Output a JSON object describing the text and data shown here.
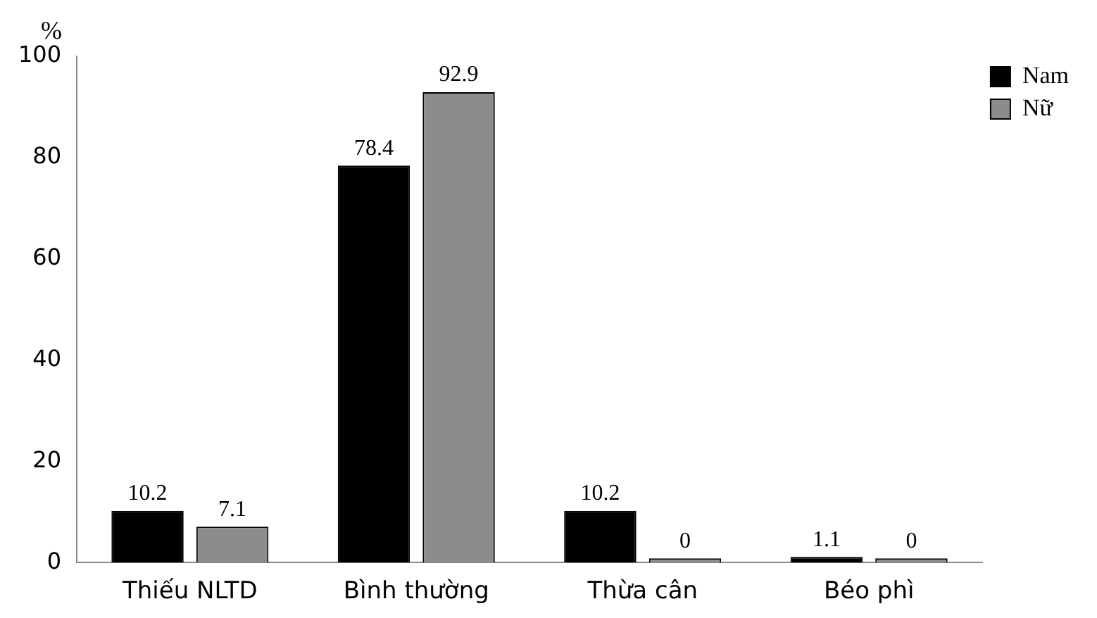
{
  "chart_data": {
    "type": "bar",
    "ylabel": "%",
    "categories": [
      "Thiếu NLTD",
      "Bình thường",
      "Thừa cân",
      "Béo phì"
    ],
    "series": [
      {
        "name": "Nam",
        "color": "#000000",
        "values": [
          10.2,
          78.4,
          10.2,
          1.1
        ]
      },
      {
        "name": "Nữ",
        "color": "#8c8c8c",
        "values": [
          7.1,
          92.9,
          0,
          0
        ]
      }
    ],
    "ylim": [
      0,
      100
    ],
    "yticks": [
      0,
      20,
      40,
      60,
      80,
      100
    ],
    "grid": false,
    "legend": "right",
    "data_labels": true
  }
}
